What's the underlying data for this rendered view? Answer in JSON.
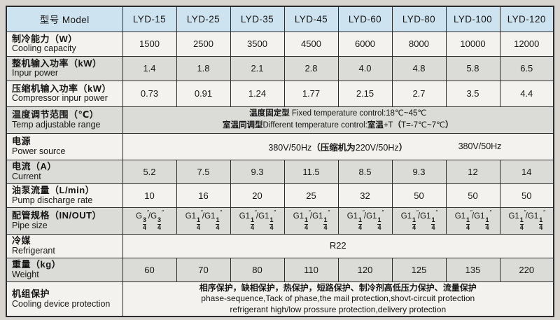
{
  "colors": {
    "page_bg": "#d8d4d0",
    "header_bg": "#cde3ef",
    "row_gray": "#dbdbd8",
    "row_white": "#f4f2ef",
    "border": "#2b2b2b"
  },
  "table": {
    "header": {
      "label": "型号 Model",
      "models": [
        "LYD-15",
        "LYD-25",
        "LYD-35",
        "LYD-45",
        "LYD-60",
        "LYD-80",
        "LYD-100",
        "LYD-120"
      ]
    },
    "rows": [
      {
        "id": "cooling_capacity",
        "shaded": false,
        "kind": "values",
        "zh": "制冷能力（W）",
        "en": "Cooling capacity",
        "values": [
          "1500",
          "2500",
          "3500",
          "4500",
          "6000",
          "8000",
          "10000",
          "12000"
        ]
      },
      {
        "id": "input_power",
        "shaded": true,
        "kind": "values",
        "zh": "整机输入功率（kW）",
        "en": "Inpur power",
        "values": [
          "1.4",
          "1.8",
          "2.1",
          "2.8",
          "4.0",
          "4.8",
          "5.8",
          "6.5"
        ]
      },
      {
        "id": "compressor_input_power",
        "shaded": false,
        "kind": "values",
        "zh": "压缩机输入功率（kW）",
        "en": "Compressor inpur power",
        "values": [
          "0.73",
          "0.91",
          "1.24",
          "1.77",
          "2.15",
          "2.7",
          "3.5",
          "4.4"
        ]
      },
      {
        "id": "temp_range",
        "shaded": true,
        "kind": "merged",
        "zh": "温度调节范围（℃）",
        "en": "Temp adjustable range",
        "lines": [
          "温度固定型 Fixed temperature control:18℃~45℃",
          "室温同调型Different temperature control:室温+T（T=-7℃~7℃）"
        ]
      },
      {
        "id": "power_source",
        "shaded": false,
        "kind": "power",
        "zh": "电源",
        "en": "Power source",
        "main": "380V/50Hz（压缩机为220V/50Hz）",
        "right": "380V/50Hz"
      },
      {
        "id": "current",
        "shaded": true,
        "kind": "values",
        "zh": "电流（A）",
        "en": "Current",
        "values": [
          "5.2",
          "7.5",
          "9.3",
          "11.5",
          "8.5",
          "9.3",
          "12",
          "14"
        ]
      },
      {
        "id": "pump_discharge",
        "shaded": false,
        "kind": "values",
        "zh": "油泵流量（L/min）",
        "en": "Pump discharge rate",
        "values": [
          "10",
          "16",
          "20",
          "25",
          "32",
          "50",
          "50",
          "50"
        ]
      },
      {
        "id": "pipe_size",
        "shaded": true,
        "kind": "frac_values",
        "zh": "配管规格（IN/OUT）",
        "en": "Pipe size",
        "values": [
          "G{3/4}″/G{3/4}″",
          "G1{1/4}″/G1{1/4}″",
          "G1{1/4}″/G1{1/4}″",
          "G1{1/4}″/G1{1/4}″",
          "G1{1/4}″/G1{1/4}″",
          "G1{1/4}″/G1{1/4}″",
          "G1{1/4}″/G1{1/4}″",
          "G1{1/4}″/G1{1/4}″"
        ]
      },
      {
        "id": "refrigerant",
        "shaded": false,
        "kind": "merged",
        "zh": "冷媒",
        "en": "Refrigerant",
        "lines": [
          "R22"
        ]
      },
      {
        "id": "weight",
        "shaded": true,
        "kind": "values",
        "zh": "重量（kg）",
        "en": "Weight",
        "values": [
          "60",
          "70",
          "80",
          "110",
          "120",
          "125",
          "135",
          "220"
        ]
      },
      {
        "id": "protection",
        "shaded": false,
        "kind": "merged",
        "zh": "机组保护",
        "en": "Cooling device protection",
        "lines": [
          "相序保护，缺相保护，热保护，短路保护、制冷剂高低压力保护、流量保护",
          "phase-sequence,Tack of phase,the mail protection,shovt-circuit protection",
          "refrigerant high/low prossure protection,delivery protection"
        ]
      }
    ]
  }
}
